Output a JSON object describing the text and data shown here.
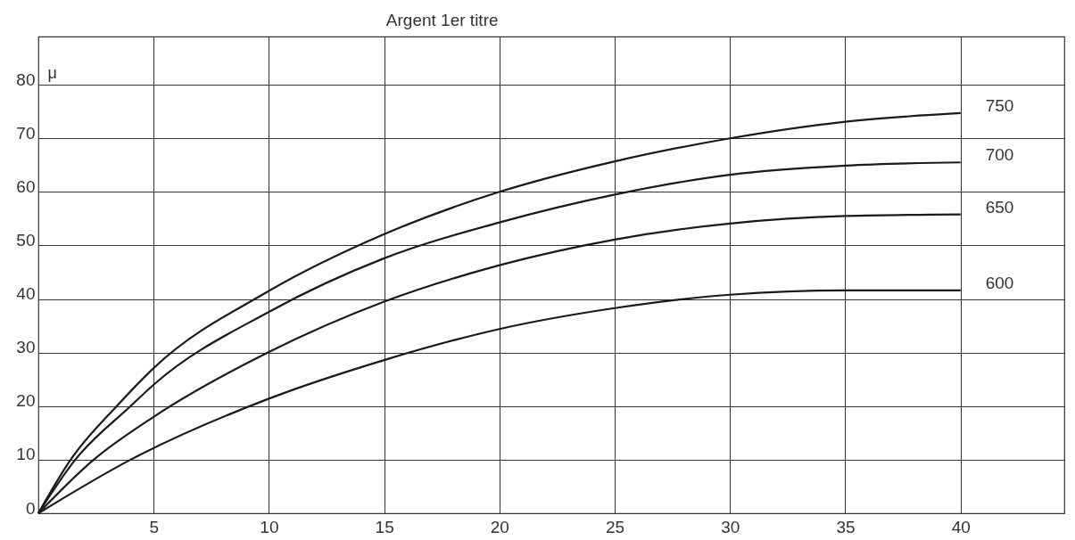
{
  "chart_data": {
    "type": "line",
    "title": "Argent 1er titre",
    "ylabel": "μ",
    "x": [
      0,
      1.4,
      3.4,
      5,
      10,
      15,
      20,
      25,
      30,
      35,
      40
    ],
    "series": [
      {
        "name": "750",
        "color": "#1a1a1a",
        "values": [
          0,
          10,
          20,
          27.1,
          41.5,
          52.1,
          60,
          65.7,
          70,
          73.1,
          74.7
        ]
      },
      {
        "name": "700",
        "color": "#1a1a1a",
        "x": [
          0,
          1.6,
          4.0,
          5,
          10,
          15,
          20,
          25,
          30,
          35,
          40
        ],
        "values": [
          0,
          10,
          20,
          24,
          37.6,
          47.6,
          54.3,
          59.5,
          63.2,
          64.9,
          65.5
        ]
      },
      {
        "name": "650",
        "color": "#1a1a1a",
        "x": [
          0,
          2.4,
          5,
          10,
          15,
          20,
          25,
          30,
          35,
          40
        ],
        "values": [
          0,
          10,
          18,
          30.1,
          39.5,
          46.3,
          51.1,
          54.1,
          55.5,
          55.8
        ]
      },
      {
        "name": "600",
        "color": "#1a1a1a",
        "x": [
          0,
          4.0,
          10,
          15,
          20,
          25,
          30,
          35,
          40
        ],
        "values": [
          0,
          10,
          21.4,
          28.6,
          34.4,
          38.3,
          40.8,
          41.6,
          41.6
        ]
      }
    ],
    "xlim": [
      0,
      44.5
    ],
    "ylim": [
      0,
      89
    ],
    "xticks": [
      5,
      10,
      15,
      20,
      25,
      30,
      35,
      40
    ],
    "yticks": [
      0,
      10,
      20,
      30,
      40,
      50,
      60,
      70,
      80
    ],
    "grid": true,
    "legend": false,
    "marker": "none",
    "line_style": "solid"
  }
}
